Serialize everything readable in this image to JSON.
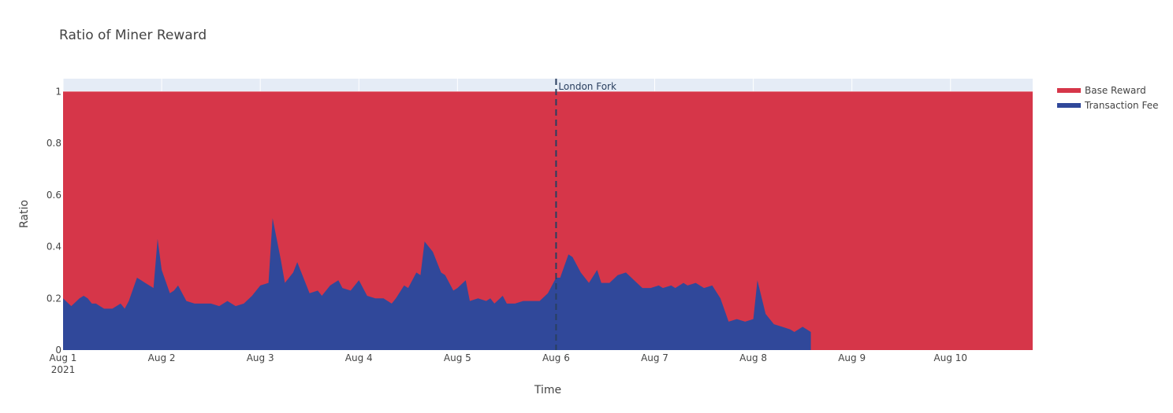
{
  "chart_data": {
    "type": "area",
    "title": "Ratio of Miner Reward",
    "xlabel": "Time",
    "ylabel": "Ratio",
    "x_start": "2021-08-01T00:00",
    "x_end": "2021-08-10T20:00",
    "ylim": [
      0,
      1.05
    ],
    "y_ticks": [
      "0",
      "0.2",
      "0.4",
      "0.6",
      "0.8",
      "1"
    ],
    "x_ticks": [
      {
        "date": "2021-08-01",
        "label": "Aug 1",
        "sub": "2021"
      },
      {
        "date": "2021-08-02",
        "label": "Aug 2"
      },
      {
        "date": "2021-08-03",
        "label": "Aug 3"
      },
      {
        "date": "2021-08-04",
        "label": "Aug 4"
      },
      {
        "date": "2021-08-05",
        "label": "Aug 5"
      },
      {
        "date": "2021-08-06",
        "label": "Aug 6"
      },
      {
        "date": "2021-08-07",
        "label": "Aug 7"
      },
      {
        "date": "2021-08-08",
        "label": "Aug 8"
      },
      {
        "date": "2021-08-09",
        "label": "Aug 9"
      },
      {
        "date": "2021-08-10",
        "label": "Aug 10"
      }
    ],
    "grid": true,
    "legend_position": "top-right",
    "annotation": {
      "date": "2021-08-06T00:00",
      "text": "London Fork",
      "style": "dashed"
    },
    "series": [
      {
        "name": "Base Reward",
        "color": "#d63649",
        "stacked_total": 1
      },
      {
        "name": "Transaction Fee",
        "color": "#30489a",
        "points": [
          [
            "2021-08-01T00:00",
            0.2
          ],
          [
            "2021-08-01T02:00",
            0.17
          ],
          [
            "2021-08-01T04:00",
            0.2
          ],
          [
            "2021-08-01T05:00",
            0.21
          ],
          [
            "2021-08-01T06:00",
            0.2
          ],
          [
            "2021-08-01T07:00",
            0.18
          ],
          [
            "2021-08-01T08:00",
            0.18
          ],
          [
            "2021-08-01T10:00",
            0.16
          ],
          [
            "2021-08-01T12:00",
            0.16
          ],
          [
            "2021-08-01T14:00",
            0.18
          ],
          [
            "2021-08-01T15:00",
            0.16
          ],
          [
            "2021-08-01T16:00",
            0.19
          ],
          [
            "2021-08-01T18:00",
            0.28
          ],
          [
            "2021-08-01T19:00",
            0.27
          ],
          [
            "2021-08-01T20:00",
            0.26
          ],
          [
            "2021-08-01T22:00",
            0.24
          ],
          [
            "2021-08-01T23:00",
            0.43
          ],
          [
            "2021-08-02T00:00",
            0.31
          ],
          [
            "2021-08-02T02:00",
            0.22
          ],
          [
            "2021-08-02T03:00",
            0.23
          ],
          [
            "2021-08-02T04:00",
            0.25
          ],
          [
            "2021-08-02T06:00",
            0.19
          ],
          [
            "2021-08-02T08:00",
            0.18
          ],
          [
            "2021-08-02T09:00",
            0.18
          ],
          [
            "2021-08-02T10:00",
            0.18
          ],
          [
            "2021-08-02T12:00",
            0.18
          ],
          [
            "2021-08-02T14:00",
            0.17
          ],
          [
            "2021-08-02T16:00",
            0.19
          ],
          [
            "2021-08-02T18:00",
            0.17
          ],
          [
            "2021-08-02T20:00",
            0.18
          ],
          [
            "2021-08-02T22:00",
            0.21
          ],
          [
            "2021-08-03T00:00",
            0.25
          ],
          [
            "2021-08-03T02:00",
            0.26
          ],
          [
            "2021-08-03T03:00",
            0.51
          ],
          [
            "2021-08-03T05:00",
            0.35
          ],
          [
            "2021-08-03T06:00",
            0.26
          ],
          [
            "2021-08-03T08:00",
            0.3
          ],
          [
            "2021-08-03T09:00",
            0.34
          ],
          [
            "2021-08-03T11:00",
            0.26
          ],
          [
            "2021-08-03T12:00",
            0.22
          ],
          [
            "2021-08-03T14:00",
            0.23
          ],
          [
            "2021-08-03T15:00",
            0.21
          ],
          [
            "2021-08-03T17:00",
            0.25
          ],
          [
            "2021-08-03T19:00",
            0.27
          ],
          [
            "2021-08-03T20:00",
            0.24
          ],
          [
            "2021-08-03T22:00",
            0.23
          ],
          [
            "2021-08-04T00:00",
            0.27
          ],
          [
            "2021-08-04T02:00",
            0.21
          ],
          [
            "2021-08-04T04:00",
            0.2
          ],
          [
            "2021-08-04T06:00",
            0.2
          ],
          [
            "2021-08-04T08:00",
            0.18
          ],
          [
            "2021-08-04T09:00",
            0.2
          ],
          [
            "2021-08-04T11:00",
            0.25
          ],
          [
            "2021-08-04T12:00",
            0.24
          ],
          [
            "2021-08-04T14:00",
            0.3
          ],
          [
            "2021-08-04T15:00",
            0.29
          ],
          [
            "2021-08-04T16:00",
            0.42
          ],
          [
            "2021-08-04T18:00",
            0.38
          ],
          [
            "2021-08-04T20:00",
            0.3
          ],
          [
            "2021-08-04T21:00",
            0.29
          ],
          [
            "2021-08-04T23:00",
            0.23
          ],
          [
            "2021-08-05T00:00",
            0.24
          ],
          [
            "2021-08-05T02:00",
            0.27
          ],
          [
            "2021-08-05T03:00",
            0.19
          ],
          [
            "2021-08-05T05:00",
            0.2
          ],
          [
            "2021-08-05T07:00",
            0.19
          ],
          [
            "2021-08-05T08:00",
            0.2
          ],
          [
            "2021-08-05T09:00",
            0.18
          ],
          [
            "2021-08-05T11:00",
            0.21
          ],
          [
            "2021-08-05T12:00",
            0.18
          ],
          [
            "2021-08-05T14:00",
            0.18
          ],
          [
            "2021-08-05T16:00",
            0.19
          ],
          [
            "2021-08-05T18:00",
            0.19
          ],
          [
            "2021-08-05T20:00",
            0.19
          ],
          [
            "2021-08-05T22:00",
            0.22
          ],
          [
            "2021-08-06T00:00",
            0.28
          ],
          [
            "2021-08-06T01:00",
            0.28
          ],
          [
            "2021-08-06T03:00",
            0.37
          ],
          [
            "2021-08-06T04:00",
            0.36
          ],
          [
            "2021-08-06T06:00",
            0.3
          ],
          [
            "2021-08-06T08:00",
            0.26
          ],
          [
            "2021-08-06T10:00",
            0.31
          ],
          [
            "2021-08-06T11:00",
            0.26
          ],
          [
            "2021-08-06T13:00",
            0.26
          ],
          [
            "2021-08-06T15:00",
            0.29
          ],
          [
            "2021-08-06T17:00",
            0.3
          ],
          [
            "2021-08-06T19:00",
            0.27
          ],
          [
            "2021-08-06T21:00",
            0.24
          ],
          [
            "2021-08-06T23:00",
            0.24
          ],
          [
            "2021-08-07T01:00",
            0.25
          ],
          [
            "2021-08-07T02:00",
            0.24
          ],
          [
            "2021-08-07T04:00",
            0.25
          ],
          [
            "2021-08-07T05:00",
            0.24
          ],
          [
            "2021-08-07T07:00",
            0.26
          ],
          [
            "2021-08-07T08:00",
            0.25
          ],
          [
            "2021-08-07T10:00",
            0.26
          ],
          [
            "2021-08-07T11:00",
            0.25
          ],
          [
            "2021-08-07T12:00",
            0.24
          ],
          [
            "2021-08-07T14:00",
            0.25
          ],
          [
            "2021-08-07T16:00",
            0.2
          ],
          [
            "2021-08-07T18:00",
            0.11
          ],
          [
            "2021-08-07T20:00",
            0.12
          ],
          [
            "2021-08-07T22:00",
            0.11
          ],
          [
            "2021-08-08T00:00",
            0.12
          ],
          [
            "2021-08-08T01:00",
            0.27
          ],
          [
            "2021-08-08T03:00",
            0.14
          ],
          [
            "2021-08-08T05:00",
            0.1
          ],
          [
            "2021-08-08T07:00",
            0.09
          ],
          [
            "2021-08-08T09:00",
            0.08
          ],
          [
            "2021-08-08T10:00",
            0.07
          ],
          [
            "2021-08-08T12:00",
            0.09
          ],
          [
            "2021-08-08T14:00",
            0.07
          ]
        ]
      }
    ]
  },
  "legend": {
    "items": [
      {
        "name": "Base Reward",
        "color": "#d63649"
      },
      {
        "name": "Transaction Fee",
        "color": "#30489a"
      }
    ]
  }
}
